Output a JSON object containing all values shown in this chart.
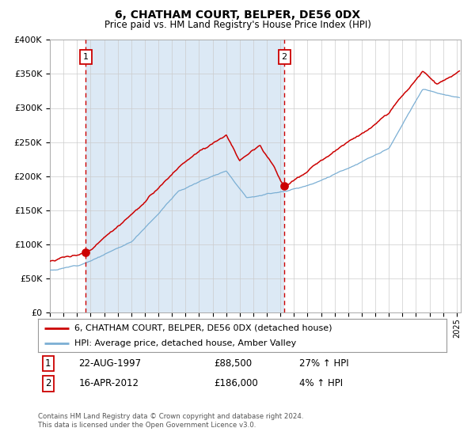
{
  "title": "6, CHATHAM COURT, BELPER, DE56 0DX",
  "subtitle": "Price paid vs. HM Land Registry's House Price Index (HPI)",
  "legend_line1": "6, CHATHAM COURT, BELPER, DE56 0DX (detached house)",
  "legend_line2": "HPI: Average price, detached house, Amber Valley",
  "annotation1_date": "22-AUG-1997",
  "annotation1_price": "£88,500",
  "annotation1_hpi": "27% ↑ HPI",
  "annotation2_date": "16-APR-2012",
  "annotation2_price": "£186,000",
  "annotation2_hpi": "4% ↑ HPI",
  "footer1": "Contains HM Land Registry data © Crown copyright and database right 2024.",
  "footer2": "This data is licensed under the Open Government Licence v3.0.",
  "sale1_year": 1997.64,
  "sale1_value": 88500,
  "sale2_year": 2012.29,
  "sale2_value": 186000,
  "hpi_color": "#7bafd4",
  "price_color": "#cc0000",
  "vline_color": "#cc0000",
  "shade_color": "#dce9f5",
  "plot_bg": "#ffffff",
  "ylim_min": 0,
  "ylim_max": 400000,
  "xmin": 1995.0,
  "xmax": 2025.3
}
